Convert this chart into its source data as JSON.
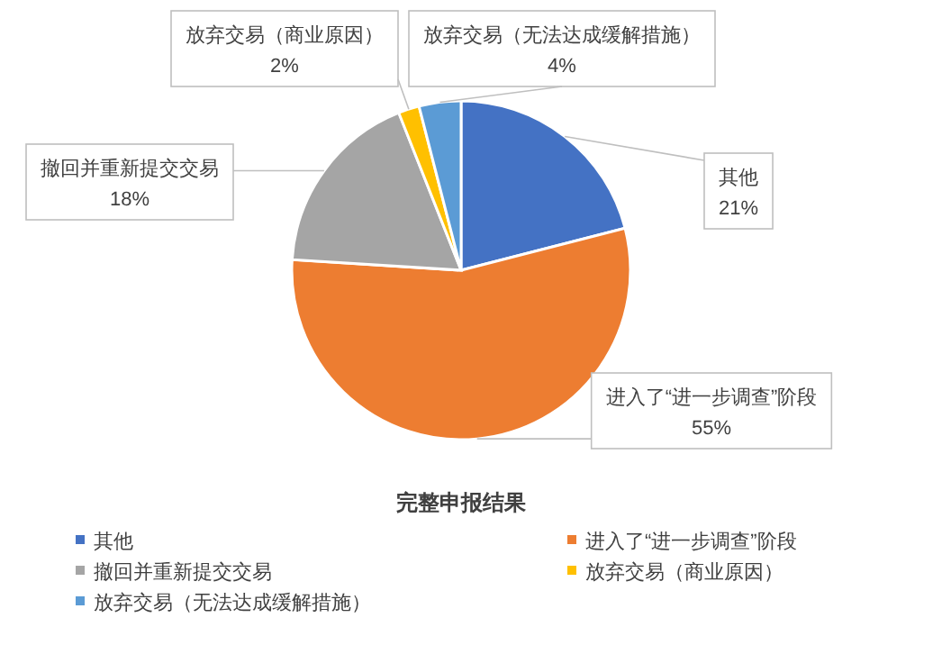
{
  "chart_data": {
    "type": "pie",
    "title": "完整申报结果",
    "categories": [
      "其他",
      "进入了“进一步调查”阶段",
      "撤回并重新提交交易",
      "放弃交易（商业原因）",
      "放弃交易（无法达成缓解措施）"
    ],
    "values": [
      21,
      55,
      18,
      2,
      4
    ],
    "value_labels": [
      "21%",
      "55%",
      "18%",
      "2%",
      "4%"
    ],
    "colors": [
      "#4472c4",
      "#ed7d31",
      "#a5a5a5",
      "#ffc000",
      "#5b9bd5"
    ],
    "legend": "bottom"
  }
}
